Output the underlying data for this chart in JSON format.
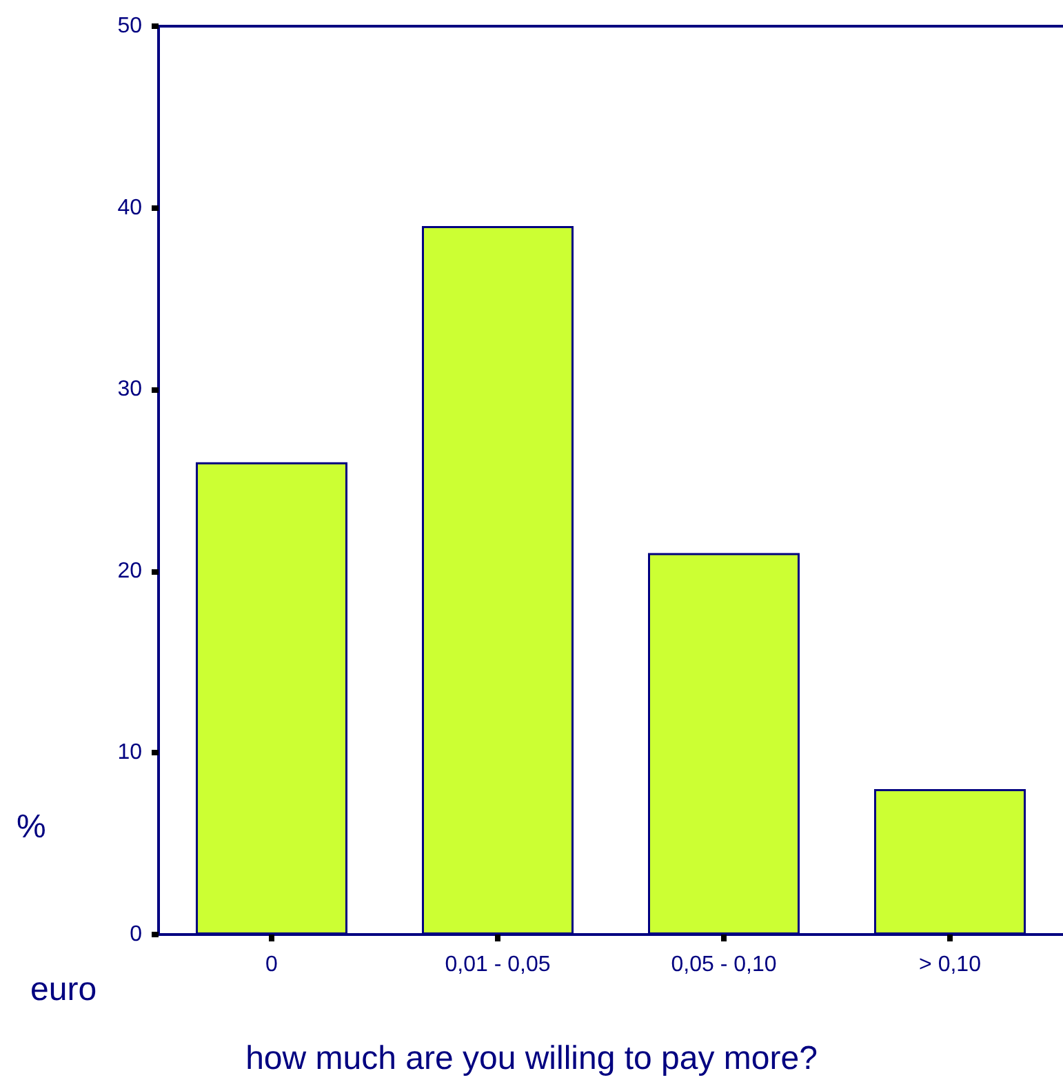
{
  "chart_data": {
    "type": "bar",
    "xlabel": "how much are you willing to pay more?",
    "ylabel": "%",
    "annotations": [
      "euro"
    ],
    "categories": [
      "0",
      "0,01 - 0,05",
      "0,05 - 0,10",
      "> 0,10"
    ],
    "values": [
      26,
      39,
      21,
      8
    ],
    "color": "#ccff33",
    "ylim": [
      0,
      50
    ],
    "yticks": [
      0,
      10,
      20,
      30,
      40,
      50
    ],
    "grid": false
  }
}
